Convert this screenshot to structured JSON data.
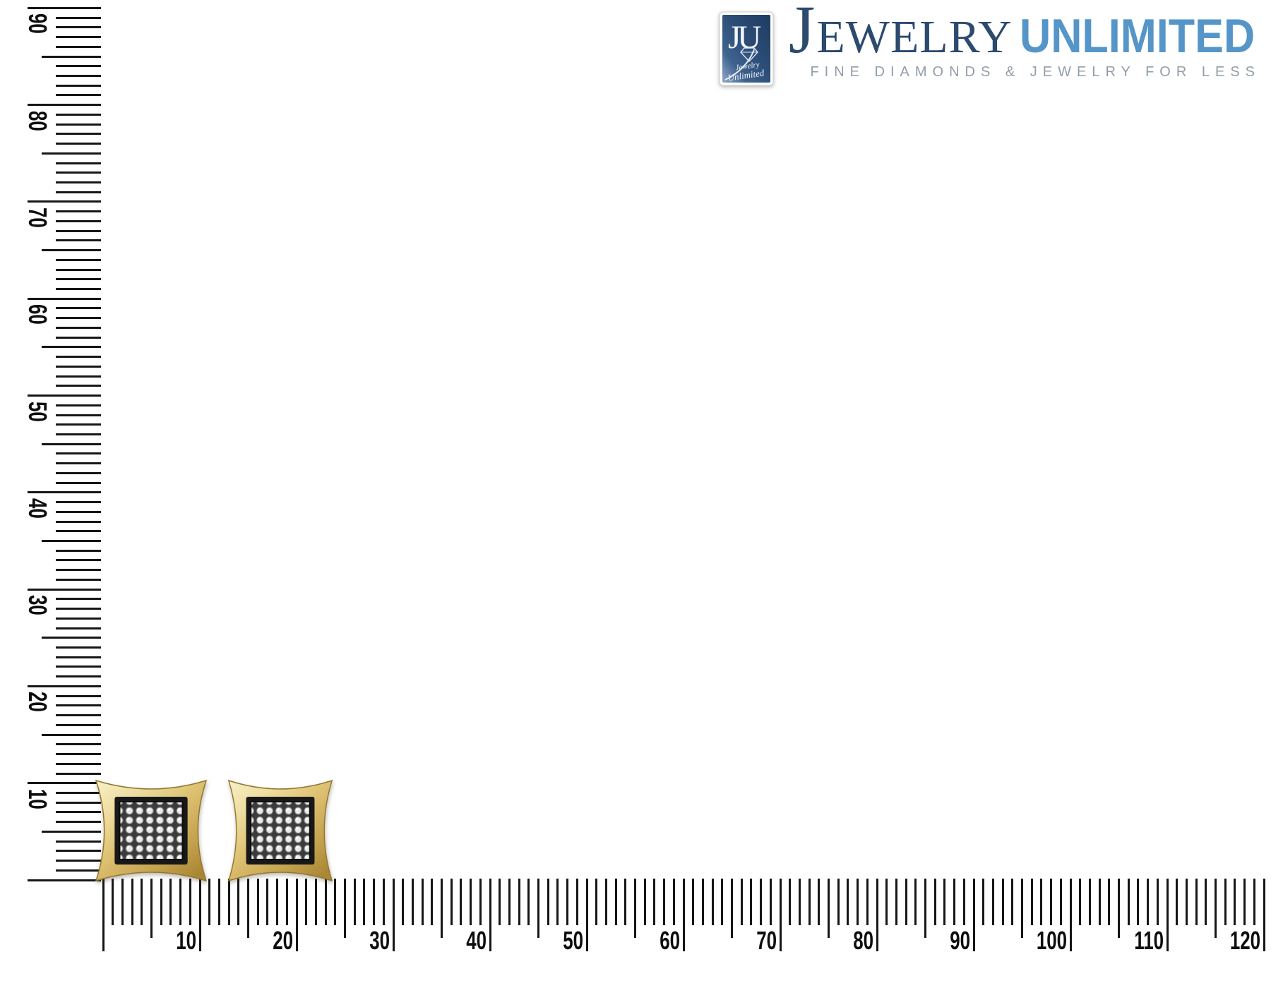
{
  "page": {
    "background": "#ffffff"
  },
  "logo": {
    "badge": {
      "monogram": "JU",
      "script_line1": "Jewelry",
      "script_line2": "Unlimited"
    },
    "brand_initial": "J",
    "brand_rest": "EWELRY",
    "brand_word2": "UNLIMITED",
    "tagline": "FINE DIAMONDS & JEWELRY FOR LESS",
    "colors": {
      "navy": "#2b4a6e",
      "light_blue": "#5595c8",
      "tagline_gray": "#929daa",
      "badge_navy": "#2c4d77"
    }
  },
  "rulers": {
    "unit": "millimeters",
    "tick_color": "#161616",
    "vertical_labels": [
      "10",
      "20",
      "30",
      "40",
      "50",
      "60",
      "70",
      "80",
      "90"
    ],
    "horizontal_labels": [
      "10",
      "20",
      "30",
      "40",
      "50",
      "60",
      "70",
      "80",
      "90",
      "100",
      "110",
      "120"
    ]
  },
  "earrings": {
    "description": "Pair of yellow gold kite-shaped square stud earrings with pave diamond centers, shown against millimeter rulers; each earring spans about 10 mm",
    "colors": {
      "gold": "#d9bc66",
      "pave_light": "#ededed",
      "pave_dark": "#2f2f2f"
    }
  }
}
